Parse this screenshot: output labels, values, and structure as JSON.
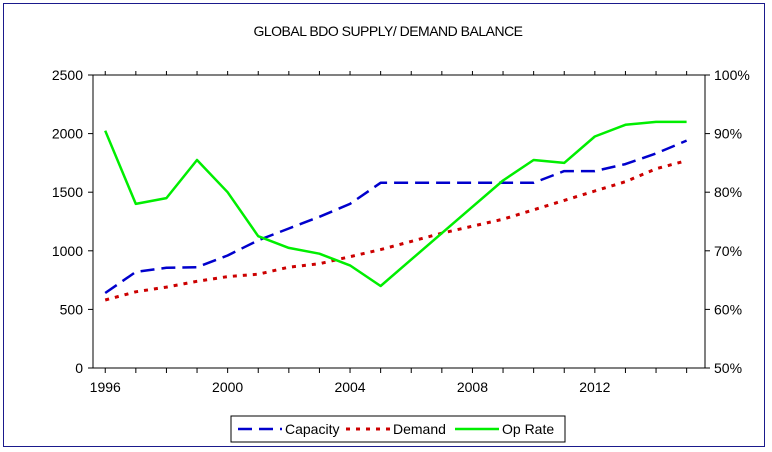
{
  "chart_data": {
    "type": "line",
    "title": "GLOBAL BDO SUPPLY/ DEMAND BALANCE",
    "ylabel": "",
    "y2label": "",
    "x": [
      1996,
      1997,
      1998,
      1999,
      2000,
      2001,
      2002,
      2003,
      2004,
      2005,
      2006,
      2007,
      2008,
      2009,
      2010,
      2011,
      2012,
      2013,
      2014,
      2015
    ],
    "x_ticks": [
      "1996",
      "2000",
      "2004",
      "2008",
      "2012"
    ],
    "y_ticks": [
      "0",
      "500",
      "1000",
      "1500",
      "2000",
      "2500"
    ],
    "y2_ticks": [
      "50%",
      "60%",
      "70%",
      "80%",
      "90%",
      "100%"
    ],
    "ylim": [
      0,
      2500
    ],
    "y2lim": [
      50,
      100
    ],
    "series": [
      {
        "name": "Capacity",
        "axis": "left",
        "color": "#0000cc",
        "style": "dashed",
        "values": [
          640,
          820,
          855,
          860,
          960,
          1090,
          1190,
          1290,
          1400,
          1580,
          1580,
          1580,
          1580,
          1580,
          1580,
          1680,
          1680,
          1740,
          1830,
          1940
        ]
      },
      {
        "name": "Demand",
        "axis": "left",
        "color": "#cc0000",
        "style": "dotted",
        "values": [
          580,
          650,
          690,
          740,
          780,
          800,
          860,
          890,
          950,
          1010,
          1080,
          1150,
          1210,
          1270,
          1350,
          1430,
          1510,
          1590,
          1700,
          1770
        ]
      },
      {
        "name": "Op Rate",
        "axis": "right",
        "color": "#00ee00",
        "style": "solid",
        "values": [
          90.5,
          78,
          79,
          85.5,
          80,
          72.5,
          70.5,
          69.5,
          67.5,
          64,
          68.5,
          73,
          77.5,
          82,
          85.5,
          85,
          89.5,
          91.5,
          92,
          92
        ]
      }
    ],
    "legend_position": "bottom"
  }
}
